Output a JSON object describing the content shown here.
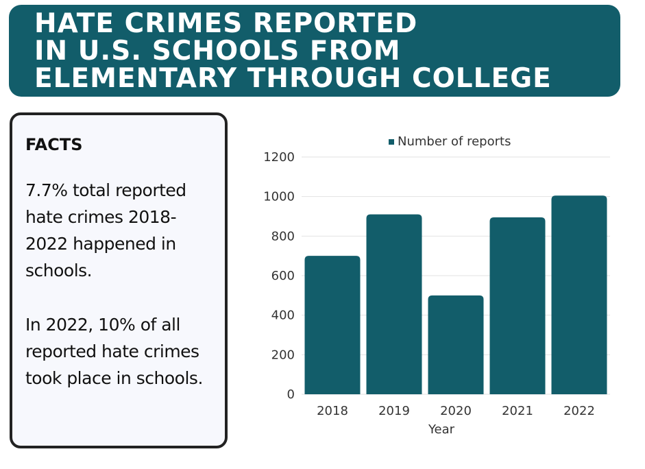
{
  "colors": {
    "brand": "#125d6a",
    "bar": "#125d6a",
    "grid": "#e2e2e2"
  },
  "banner": {
    "title_lines": [
      "HATE CRIMES REPORTED",
      "IN U.S. SCHOOLS FROM",
      "ELEMENTARY THROUGH COLLEGE"
    ]
  },
  "facts": {
    "heading": "FACTS",
    "items": [
      "7.7% total reported hate crimes 2018-2022 happened in schools.",
      "In 2022, 10% of all reported hate crimes took place in schools."
    ]
  },
  "chart_data": {
    "type": "bar",
    "categories": [
      "2018",
      "2019",
      "2020",
      "2021",
      "2022"
    ],
    "series": [
      {
        "name": "Number of reports",
        "values": [
          700,
          910,
          500,
          895,
          1005
        ]
      }
    ],
    "xlabel": "Year",
    "ylabel": "",
    "ylim": [
      0,
      1200
    ],
    "yticks": [
      0,
      200,
      400,
      600,
      800,
      1000,
      1200
    ],
    "grid": true,
    "legend": "top-center"
  }
}
